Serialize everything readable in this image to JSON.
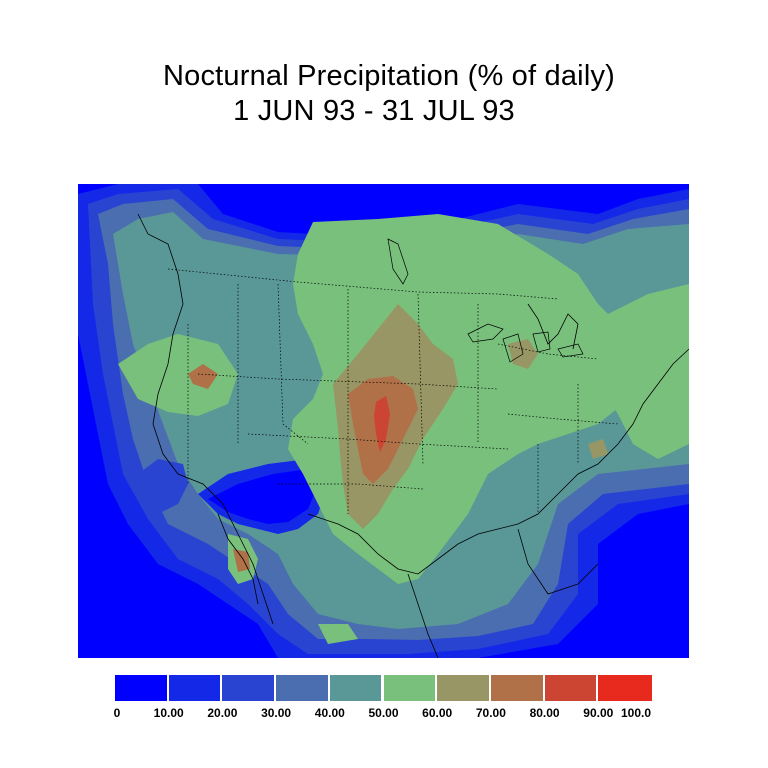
{
  "title": {
    "line1": "Nocturnal Precipitation (% of daily)",
    "line2": "1 JUN 93 - 31 JUL 93"
  },
  "colorbar": {
    "colors": [
      "#0000ff",
      "#1428e8",
      "#2a44d2",
      "#4a6eb0",
      "#5a9898",
      "#78c07c",
      "#989664",
      "#b07048",
      "#cc4432",
      "#e82a1e"
    ],
    "labels": [
      "0",
      "10.00",
      "20.00",
      "30.00",
      "40.00",
      "50.00",
      "60.00",
      "70.00",
      "80.00",
      "90.00",
      "100.0"
    ]
  },
  "map": {
    "variable": "nocturnal precipitation fraction",
    "units": "% of daily",
    "region": "contiguous United States, southern Canada, northern Mexico"
  }
}
